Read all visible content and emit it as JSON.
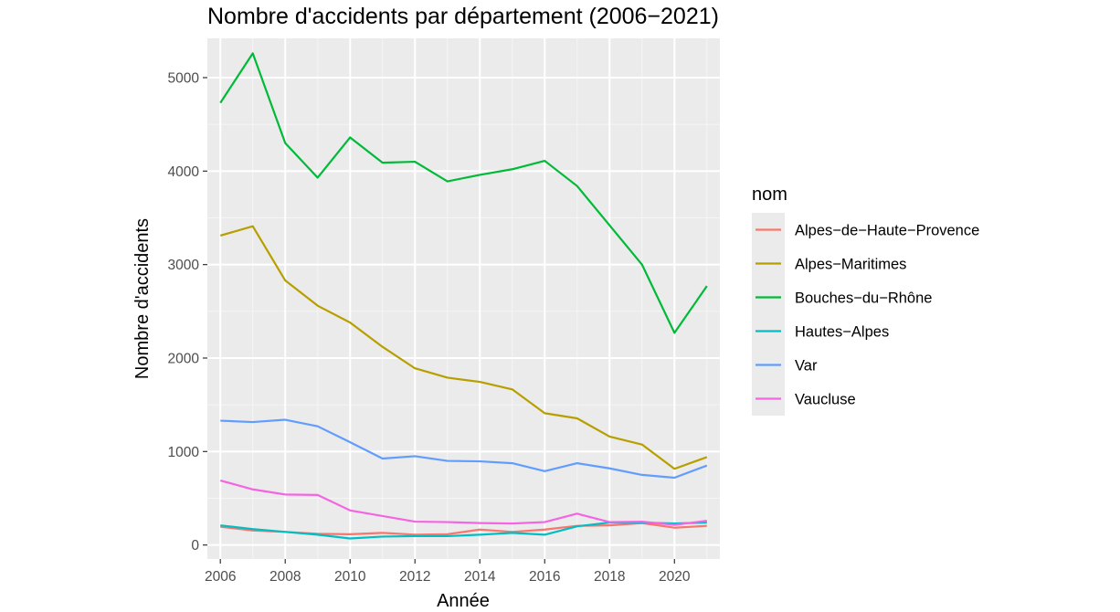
{
  "chart_data": {
    "type": "line",
    "title": "Nombre d'accidents par département (2006−2021)",
    "xlabel": "Année",
    "ylabel": "Nombre d'accidents",
    "x": [
      2006,
      2007,
      2008,
      2009,
      2010,
      2011,
      2012,
      2013,
      2014,
      2015,
      2016,
      2017,
      2018,
      2019,
      2020,
      2021
    ],
    "xlim": [
      2005.6,
      2021.4
    ],
    "ylim": [
      -150,
      5420
    ],
    "x_ticks": [
      2006,
      2008,
      2010,
      2012,
      2014,
      2016,
      2018,
      2020
    ],
    "x_tick_labels": [
      "2006",
      "2008",
      "2010",
      "2012",
      "2014",
      "2016",
      "2018",
      "2020"
    ],
    "y_ticks": [
      0,
      1000,
      2000,
      3000,
      4000,
      5000
    ],
    "y_tick_labels": [
      "0",
      "1000",
      "2000",
      "3000",
      "4000",
      "5000"
    ],
    "grid": true,
    "legend_title": "nom",
    "legend_position": "right",
    "series": [
      {
        "name": "Alpes−de−Haute−Provence",
        "color": "#F8766D",
        "values": [
          195,
          155,
          140,
          120,
          115,
          130,
          110,
          115,
          165,
          140,
          165,
          205,
          210,
          235,
          185,
          205
        ]
      },
      {
        "name": "Alpes−Maritimes",
        "color": "#B79F00",
        "values": [
          3310,
          3410,
          2830,
          2560,
          2380,
          2120,
          1890,
          1790,
          1745,
          1665,
          1410,
          1355,
          1160,
          1075,
          815,
          940
        ]
      },
      {
        "name": "Bouches−du−Rhône",
        "color": "#00BA38",
        "values": [
          4730,
          5260,
          4300,
          3930,
          4360,
          4090,
          4100,
          3890,
          3960,
          4020,
          4110,
          3840,
          3420,
          3000,
          2270,
          2770
        ]
      },
      {
        "name": "Hautes−Alpes",
        "color": "#00BFC4",
        "values": [
          210,
          170,
          140,
          110,
          70,
          90,
          95,
          95,
          110,
          130,
          110,
          200,
          240,
          240,
          230,
          240
        ]
      },
      {
        "name": "Var",
        "color": "#619CFF",
        "values": [
          1330,
          1315,
          1340,
          1270,
          1100,
          925,
          950,
          900,
          895,
          875,
          790,
          875,
          820,
          750,
          720,
          850
        ]
      },
      {
        "name": "Vaucluse",
        "color": "#F564E3",
        "values": [
          690,
          595,
          540,
          535,
          370,
          310,
          250,
          245,
          235,
          230,
          245,
          335,
          245,
          250,
          215,
          260
        ]
      }
    ]
  }
}
